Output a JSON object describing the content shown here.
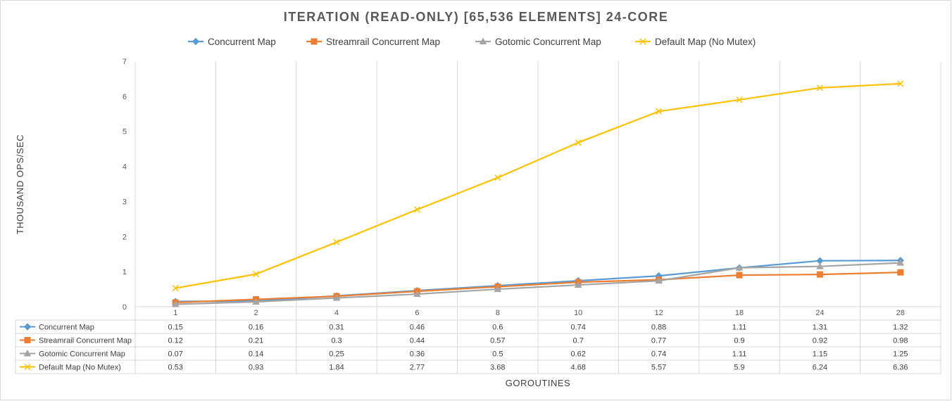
{
  "chart_data": {
    "type": "line",
    "title": "ITERATION (READ-ONLY) [65,536 ELEMENTS] 24-CORE",
    "xlabel": "GOROUTINES",
    "ylabel": "THOUSAND OPS/SEC",
    "ylim": [
      0,
      7
    ],
    "yticks": [
      "0",
      "1",
      "2",
      "3",
      "4",
      "5",
      "6",
      "7"
    ],
    "grid": true,
    "legend_position": "top",
    "categories": [
      "1",
      "2",
      "4",
      "6",
      "8",
      "10",
      "12",
      "18",
      "24",
      "28"
    ],
    "series": [
      {
        "name": "Concurrent Map",
        "color": "#5b9bd5",
        "marker": "diamond",
        "values": [
          0.15,
          0.16,
          0.31,
          0.46,
          0.6,
          0.74,
          0.88,
          1.11,
          1.31,
          1.32
        ],
        "labels": [
          "0.15",
          "0.16",
          "0.31",
          "0.46",
          "0.6",
          "0.74",
          "0.88",
          "1.11",
          "1.31",
          "1.32"
        ]
      },
      {
        "name": "Streamrail Concurrent Map",
        "color": "#ed7d31",
        "marker": "square",
        "values": [
          0.12,
          0.21,
          0.3,
          0.44,
          0.57,
          0.7,
          0.77,
          0.9,
          0.92,
          0.98
        ],
        "labels": [
          "0.12",
          "0.21",
          "0.3",
          "0.44",
          "0.57",
          "0.7",
          "0.77",
          "0.9",
          "0.92",
          "0.98"
        ]
      },
      {
        "name": "Gotomic Concurrent Map",
        "color": "#a5a5a5",
        "marker": "triangle",
        "values": [
          0.07,
          0.14,
          0.25,
          0.36,
          0.5,
          0.62,
          0.74,
          1.11,
          1.15,
          1.25
        ],
        "labels": [
          "0.07",
          "0.14",
          "0.25",
          "0.36",
          "0.5",
          "0.62",
          "0.74",
          "1.11",
          "1.15",
          "1.25"
        ]
      },
      {
        "name": "Default Map (No Mutex)",
        "color": "#ffc000",
        "marker": "x",
        "values": [
          0.53,
          0.93,
          1.84,
          2.77,
          3.68,
          4.68,
          5.57,
          5.9,
          6.24,
          6.36
        ],
        "labels": [
          "0.53",
          "0.93",
          "1.84",
          "2.77",
          "3.68",
          "4.68",
          "5.57",
          "5.9",
          "6.24",
          "6.36"
        ]
      }
    ]
  }
}
